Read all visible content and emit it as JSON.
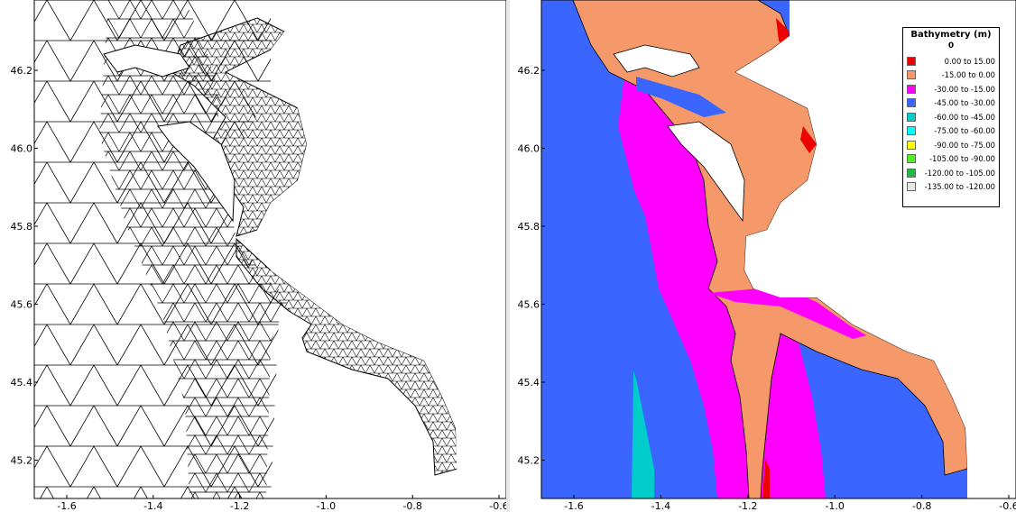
{
  "colors": {
    "red": "#ee0000",
    "salmon": "#f5986a",
    "magenta": "#ff00ff",
    "blue": "#3a66ff",
    "teal": "#00cccc",
    "cyan": "#00ffff",
    "yellow": "#ffff00",
    "green": "#55ee22",
    "darkgreen": "#22bb44",
    "lightgray": "#e6e6e6"
  },
  "axes": {
    "x_ticks": [
      "-1.6",
      "-1.4",
      "-1.2",
      "-1.0",
      "-0.8",
      "-0.6"
    ],
    "y_ticks": [
      "46.2",
      "46.0",
      "45.8",
      "45.6",
      "45.4",
      "45.2"
    ]
  },
  "left_panel": {
    "kind": "triangular-mesh"
  },
  "right_panel": {
    "kind": "bathymetry-map"
  },
  "legend": {
    "title": "Bathymetry (m)",
    "subtitle": "0",
    "items": [
      {
        "label": "0.00 to 15.00",
        "from": "0.00",
        "to": "15.00",
        "color": "#ee0000"
      },
      {
        "label": "-15.00 to 0.00",
        "from": "-15.00",
        "to": "0.00",
        "color": "#f5986a"
      },
      {
        "label": "-30.00 to -15.00",
        "from": "-30.00",
        "to": "-15.00",
        "color": "#ff00ff"
      },
      {
        "label": "-45.00 to -30.00",
        "from": "-45.00",
        "to": "-30.00",
        "color": "#3a66ff"
      },
      {
        "label": "-60.00 to -45.00",
        "from": "-60.00",
        "to": "-45.00",
        "color": "#00cccc"
      },
      {
        "label": "-75.00 to -60.00",
        "from": "-75.00",
        "to": "-60.00",
        "color": "#00ffff"
      },
      {
        "label": "-90.00 to -75.00",
        "from": "-90.00",
        "to": "-75.00",
        "color": "#ffff00"
      },
      {
        "label": "-105.00 to -90.00",
        "from": "-105.00",
        "to": "-90.00",
        "color": "#55ee22"
      },
      {
        "label": "-120.00 to -105.00",
        "from": "-120.00",
        "to": "-105.00",
        "color": "#22bb44"
      },
      {
        "label": "-135.00 to -120.00",
        "from": "-135.00",
        "to": "-120.00",
        "color": "#e6e6e6"
      }
    ]
  }
}
